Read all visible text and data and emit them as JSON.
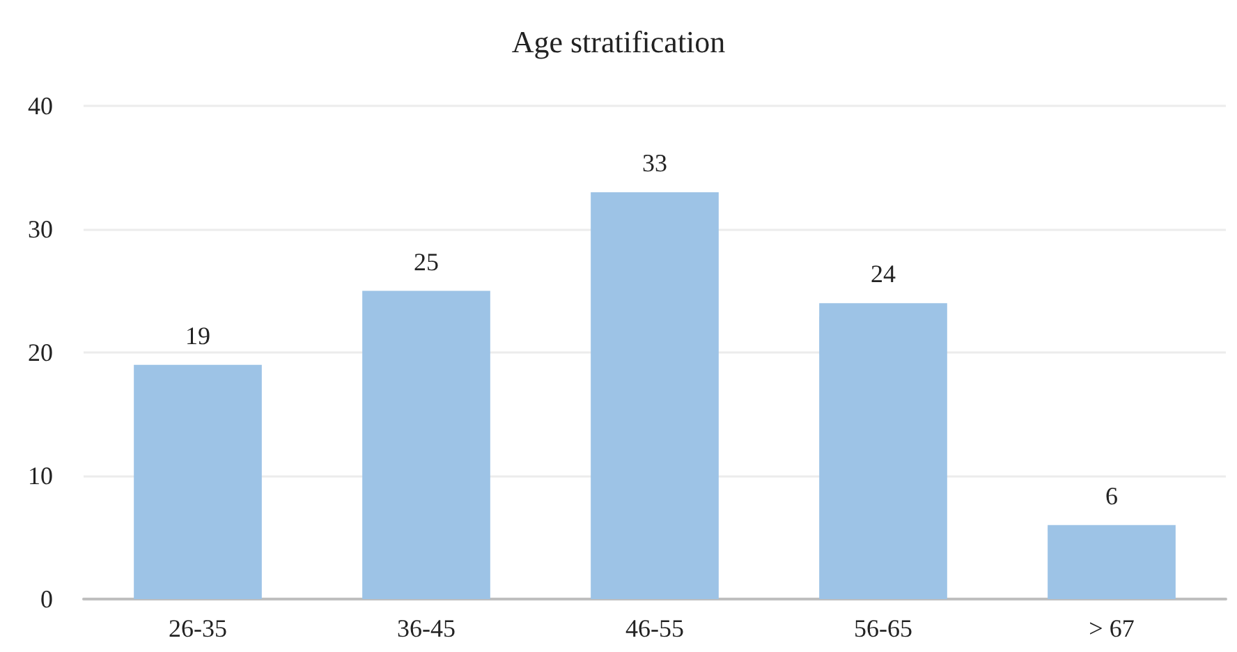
{
  "chart_data": {
    "type": "bar",
    "title": "Age stratification",
    "categories": [
      "26-35",
      "36-45",
      "46-55",
      "56-65",
      "> 67"
    ],
    "values": [
      19,
      25,
      33,
      24,
      6
    ],
    "color": "#9dc3e6",
    "ylim": [
      0,
      40
    ],
    "yticks": [
      0,
      10,
      20,
      30,
      40
    ],
    "grid": "y",
    "data_labels": true
  }
}
